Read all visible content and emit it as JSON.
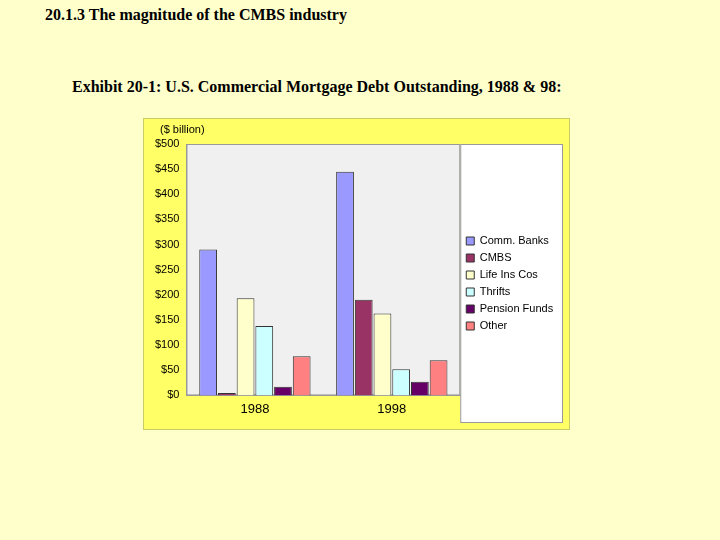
{
  "header": {
    "title": "20.1.3 The magnitude of the CMBS industry"
  },
  "chart_data": {
    "type": "bar",
    "title": "Exhibit 20-1: U.S. Commercial Mortgage Debt Outstanding, 1988 & 98:",
    "ylabel": "($ billion)",
    "categories": [
      "1988",
      "1998"
    ],
    "series": [
      {
        "name": "Comm. Banks",
        "color": "#9999ff",
        "values": [
          290,
          445
        ]
      },
      {
        "name": "CMBS",
        "color": "#993366",
        "values": [
          5,
          190
        ]
      },
      {
        "name": "Life Ins Cos",
        "color": "#ffffcc",
        "values": [
          193,
          163
        ]
      },
      {
        "name": "Thrifts",
        "color": "#ccffff",
        "values": [
          138,
          52
        ]
      },
      {
        "name": "Pension Funds",
        "color": "#660066",
        "values": [
          17,
          27
        ]
      },
      {
        "name": "Other",
        "color": "#ff8080",
        "values": [
          78,
          70
        ]
      }
    ],
    "ylim": [
      0,
      500
    ],
    "yticks": [
      {
        "value": 0,
        "label": "$0"
      },
      {
        "value": 50,
        "label": "$50"
      },
      {
        "value": 100,
        "label": "$100"
      },
      {
        "value": 150,
        "label": "$150"
      },
      {
        "value": 200,
        "label": "$200"
      },
      {
        "value": 250,
        "label": "$250"
      },
      {
        "value": 300,
        "label": "$300"
      },
      {
        "value": 350,
        "label": "$350"
      },
      {
        "value": 400,
        "label": "$400"
      },
      {
        "value": 450,
        "label": "$450"
      },
      {
        "value": 500,
        "label": "$500"
      }
    ],
    "grid": false,
    "legend": "right"
  }
}
